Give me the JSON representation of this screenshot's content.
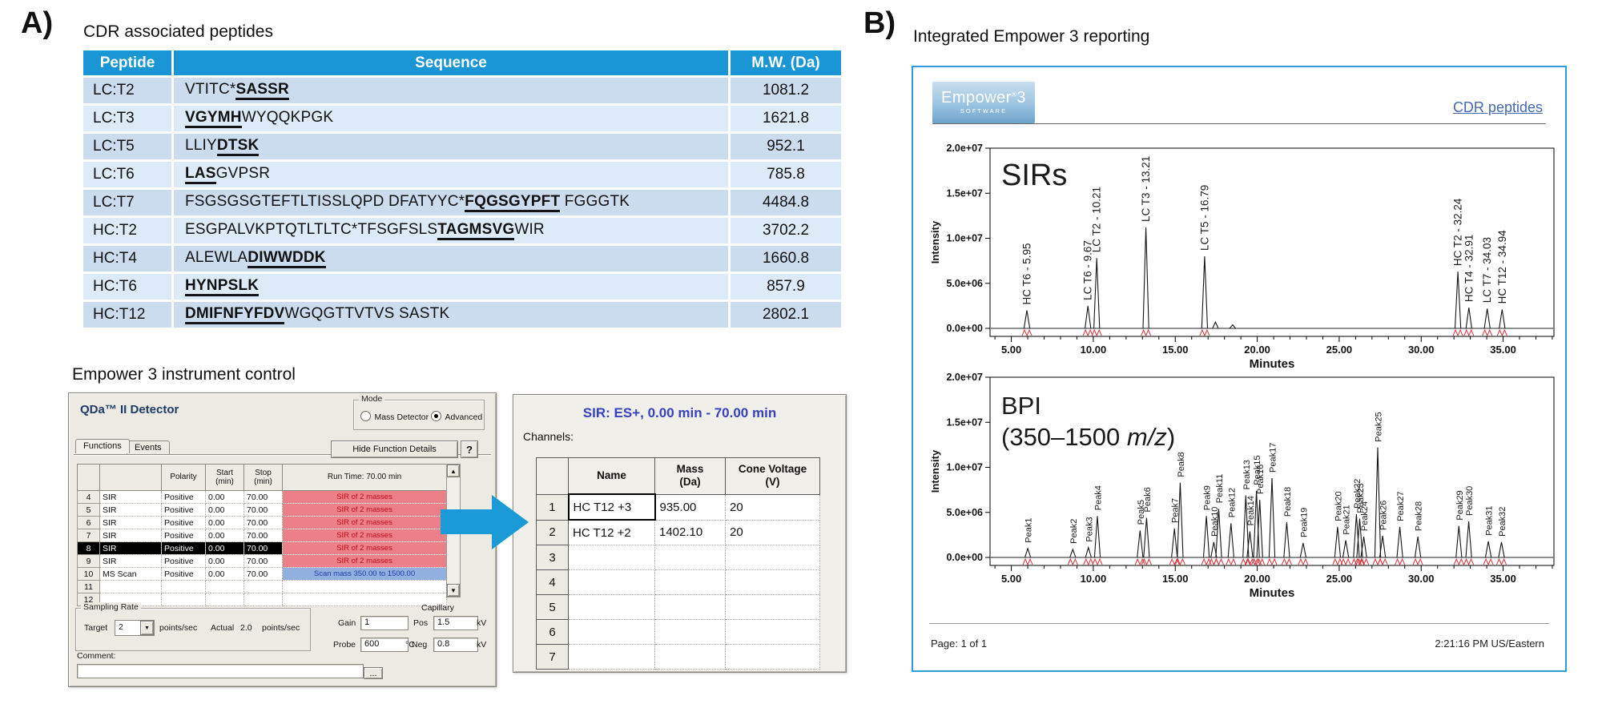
{
  "colors": {
    "table_header_blue": "#1a96d5",
    "row_blue_dark": "#cadcee",
    "row_blue_light": "#dcebf7",
    "sir_status_red": "#ec7f88",
    "scan_status_blue": "#92b0df",
    "arrow_blue": "#1a9bd8",
    "report_border_blue": "#2d9ddb",
    "link_blue": "#4568b0",
    "marker_red": "#d83540"
  },
  "panel_a": {
    "label": "A)",
    "table_title": "CDR associated peptides",
    "peptide_table": {
      "headers": [
        "Peptide",
        "Sequence",
        "M.W. (Da)"
      ],
      "rows": [
        {
          "peptide": "LC:T2",
          "sequence": [
            {
              "t": "VTITC*",
              "u": false
            },
            {
              "t": "SASSR",
              "u": true
            }
          ],
          "mw": "1081.2"
        },
        {
          "peptide": "LC:T3",
          "sequence": [
            {
              "t": "VGYMH",
              "u": true
            },
            {
              "t": "WYQQKPGK",
              "u": false
            }
          ],
          "mw": "1621.8"
        },
        {
          "peptide": "LC:T5",
          "sequence": [
            {
              "t": "LLIY",
              "u": false
            },
            {
              "t": "DTSK",
              "u": true
            }
          ],
          "mw": "952.1"
        },
        {
          "peptide": "LC:T6",
          "sequence": [
            {
              "t": "LAS",
              "u": true
            },
            {
              "t": "GVPSR",
              "u": false
            }
          ],
          "mw": "785.8"
        },
        {
          "peptide": "LC:T7",
          "sequence": [
            {
              "t": "FSGSGSGTEFTLTISSLQPD DFATYYC*",
              "u": false
            },
            {
              "t": "FQGSGYPFT",
              "u": true
            },
            {
              "t": " FGGGTK",
              "u": false
            }
          ],
          "mw": "4484.8"
        },
        {
          "peptide": "HC:T2",
          "sequence": [
            {
              "t": "ESGPALVKPTQTLTLTC*TFSGFSLS",
              "u": false
            },
            {
              "t": "TAGMSVG",
              "u": true
            },
            {
              "t": "WIR",
              "u": false
            }
          ],
          "mw": "3702.2"
        },
        {
          "peptide": "HC:T4",
          "sequence": [
            {
              "t": "ALEWLA",
              "u": false
            },
            {
              "t": "DIWWDDK",
              "u": true
            }
          ],
          "mw": "1660.8"
        },
        {
          "peptide": "HC:T6",
          "sequence": [
            {
              "t": "HYNPSLK",
              "u": true
            }
          ],
          "mw": "857.9"
        },
        {
          "peptide": "HC:T12",
          "sequence": [
            {
              "t": "DMIFNFYFDV",
              "u": true
            },
            {
              "t": "WGQGTTVTVS SASTK",
              "u": false
            }
          ],
          "mw": "2802.1"
        }
      ]
    },
    "control_title": "Empower 3 instrument control",
    "detector_window": {
      "title": "QDa™ II Detector",
      "mode_group": {
        "label": "Mode",
        "options": [
          {
            "label": "Mass Detector",
            "selected": false
          },
          {
            "label": "Advanced",
            "selected": true
          }
        ]
      },
      "tabs": [
        "Functions",
        "Events"
      ],
      "hide_details_button": "Hide Function Details",
      "help_button": "?",
      "function_table": {
        "headers": {
          "polarity": "Polarity",
          "start": "Start\n(min)",
          "stop": "Stop\n(min)",
          "runtime": "Run Time: 70.00 min"
        },
        "rows": [
          {
            "num": "4",
            "name": "SIR",
            "polarity": "Positive",
            "start": "0.00",
            "stop": "70.00",
            "detail": "SIR of 2 masses",
            "detail_type": "sir",
            "selected": false
          },
          {
            "num": "5",
            "name": "SIR",
            "polarity": "Positive",
            "start": "0.00",
            "stop": "70.00",
            "detail": "SIR of 2 masses",
            "detail_type": "sir",
            "selected": false
          },
          {
            "num": "6",
            "name": "SIR",
            "polarity": "Positive",
            "start": "0.00",
            "stop": "70.00",
            "detail": "SIR of 2 masses",
            "detail_type": "sir",
            "selected": false
          },
          {
            "num": "7",
            "name": "SIR",
            "polarity": "Positive",
            "start": "0.00",
            "stop": "70.00",
            "detail": "SIR of 2 masses",
            "detail_type": "sir",
            "selected": false
          },
          {
            "num": "8",
            "name": "SIR",
            "polarity": "Positive",
            "start": "0.00",
            "stop": "70.00",
            "detail": "SIR of 2 masses",
            "detail_type": "sir",
            "selected": true
          },
          {
            "num": "9",
            "name": "SIR",
            "polarity": "Positive",
            "start": "0.00",
            "stop": "70.00",
            "detail": "SIR of 2 masses",
            "detail_type": "sir",
            "selected": false
          },
          {
            "num": "10",
            "name": "MS Scan",
            "polarity": "Positive",
            "start": "0.00",
            "stop": "70.00",
            "detail": "Scan mass 350.00 to 1500.00",
            "detail_type": "scan",
            "selected": false
          },
          {
            "num": "11",
            "name": "",
            "polarity": "",
            "start": "",
            "stop": "",
            "detail": "",
            "detail_type": "none",
            "selected": false
          },
          {
            "num": "12",
            "name": "",
            "polarity": "",
            "start": "",
            "stop": "",
            "detail": "",
            "detail_type": "none",
            "selected": false
          }
        ]
      },
      "sampling_rate": {
        "label": "Sampling Rate",
        "target_label": "Target",
        "target_value": "2",
        "unit1": "points/sec",
        "actual_label": "Actual",
        "actual_value": "2.0",
        "unit2": "points/sec"
      },
      "gain_label": "Gain",
      "gain_value": "1",
      "capillary_label": "Capillary",
      "pos_label": "Pos",
      "pos_value": "1.5",
      "pos_unit": "kV",
      "probe_label": "Probe",
      "probe_value": "600",
      "probe_unit": "°C",
      "neg_label": "Neg",
      "neg_value": "0.8",
      "neg_unit": "kV",
      "comment_label": "Comment:",
      "comment_value": "",
      "browse_button": "..."
    },
    "sir_window": {
      "title": "SIR: ES+, 0.00 min - 70.00 min",
      "channels_label": "Channels:",
      "table": {
        "headers": [
          "Name",
          "Mass\n(Da)",
          "Cone Voltage\n(V)"
        ],
        "rows": [
          {
            "num": "1",
            "name": "HC T12 +3",
            "mass": "935.00",
            "cone": "20"
          },
          {
            "num": "2",
            "name": "HC T12 +2",
            "mass": "1402.10",
            "cone": "20"
          },
          {
            "num": "3",
            "name": "",
            "mass": "",
            "cone": ""
          },
          {
            "num": "4",
            "name": "",
            "mass": "",
            "cone": ""
          },
          {
            "num": "5",
            "name": "",
            "mass": "",
            "cone": ""
          },
          {
            "num": "6",
            "name": "",
            "mass": "",
            "cone": ""
          },
          {
            "num": "7",
            "name": "",
            "mass": "",
            "cone": ""
          }
        ]
      }
    }
  },
  "panel_b": {
    "label": "B)",
    "title": "Integrated Empower 3 reporting",
    "logo": {
      "name": "Empower",
      "reg": "®",
      "version": "3",
      "sub": "SOFTWARE"
    },
    "report_link": "CDR peptides",
    "footer": {
      "page": "Page: 1 of 1",
      "timestamp": "2:21:16 PM US/Eastern"
    }
  },
  "chart_data": [
    {
      "type": "line",
      "subtype": "chromatogram",
      "title": "SIRs",
      "xlabel": "Minutes",
      "ylabel": "Intensity",
      "xlim": [
        3.7,
        38.1
      ],
      "ylim": [
        0,
        20000000
      ],
      "xticks": [
        5,
        10,
        15,
        20,
        25,
        30,
        35
      ],
      "xtick_labels": [
        "5.00",
        "10.00",
        "15.00",
        "20.00",
        "25.00",
        "30.00",
        "35.00"
      ],
      "yticks": [
        0,
        5000000,
        10000000,
        15000000,
        20000000
      ],
      "ytick_labels": [
        "0.0e+00",
        "5.0e+06",
        "1.0e+07",
        "1.5e+07",
        "2.0e+07"
      ],
      "grid": false,
      "peaks": [
        {
          "label": "HC T6 - 5.95",
          "rt": 5.95,
          "intensity": 2000000
        },
        {
          "label": "LC T6 - 9.67",
          "rt": 9.67,
          "intensity": 2500000
        },
        {
          "label": "LC T2 - 10.21",
          "rt": 10.21,
          "intensity": 7800000
        },
        {
          "label": "LC T3 - 13.21",
          "rt": 13.21,
          "intensity": 11200000
        },
        {
          "label": "LC T5 - 16.79",
          "rt": 16.79,
          "intensity": 8000000
        },
        {
          "label": "",
          "rt": 17.45,
          "intensity": 700000
        },
        {
          "label": "",
          "rt": 18.5,
          "intensity": 400000
        },
        {
          "label": "HC T2 - 32.24",
          "rt": 32.24,
          "intensity": 6300000
        },
        {
          "label": "HC T4 - 32.91",
          "rt": 32.91,
          "intensity": 2300000
        },
        {
          "label": "LC T7 - 34.03",
          "rt": 34.03,
          "intensity": 2200000
        },
        {
          "label": "HC T12 - 34.94",
          "rt": 34.94,
          "intensity": 2100000
        }
      ]
    },
    {
      "type": "line",
      "subtype": "chromatogram",
      "title": "BPI",
      "subtitle_parts": [
        {
          "t": "(350–1500 ",
          "i": false
        },
        {
          "t": "m/z",
          "i": true
        },
        {
          "t": ")",
          "i": false
        }
      ],
      "xlabel": "Minutes",
      "ylabel": "Intensity",
      "xlim": [
        3.7,
        38.1
      ],
      "ylim": [
        0,
        20000000
      ],
      "xticks": [
        5,
        10,
        15,
        20,
        25,
        30,
        35
      ],
      "xtick_labels": [
        "5.00",
        "10.00",
        "15.00",
        "20.00",
        "25.00",
        "30.00",
        "35.00"
      ],
      "yticks": [
        0,
        5000000,
        10000000,
        15000000,
        20000000
      ],
      "ytick_labels": [
        "0.0e+00",
        "5.0e+06",
        "1.0e+07",
        "1.5e+07",
        "2.0e+07"
      ],
      "grid": false,
      "peaks": [
        {
          "label": "Peak1",
          "rt": 6.0,
          "intensity": 1000000
        },
        {
          "label": "Peak2",
          "rt": 8.75,
          "intensity": 900000
        },
        {
          "label": "Peak3",
          "rt": 9.7,
          "intensity": 1100000
        },
        {
          "label": "Peak4",
          "rt": 10.25,
          "intensity": 4600000
        },
        {
          "label": "Peak5",
          "rt": 12.85,
          "intensity": 3000000
        },
        {
          "label": "Peak6",
          "rt": 13.25,
          "intensity": 4400000
        },
        {
          "label": "Peak7",
          "rt": 14.95,
          "intensity": 3200000
        },
        {
          "label": "Peak8",
          "rt": 15.3,
          "intensity": 8300000
        },
        {
          "label": "Peak9",
          "rt": 16.9,
          "intensity": 4600000
        },
        {
          "label": "Peak10",
          "rt": 17.35,
          "intensity": 1700000
        },
        {
          "label": "Peak11",
          "rt": 17.65,
          "intensity": 5400000
        },
        {
          "label": "Peak12",
          "rt": 18.4,
          "intensity": 3800000
        },
        {
          "label": "Peak13",
          "rt": 19.3,
          "intensity": 6900000
        },
        {
          "label": "Peak14",
          "rt": 19.55,
          "intensity": 2900000
        },
        {
          "label": "Peak15",
          "rt": 19.95,
          "intensity": 7400000
        },
        {
          "label": "Peak16",
          "rt": 20.15,
          "intensity": 6400000
        },
        {
          "label": "Peak17",
          "rt": 20.9,
          "intensity": 8800000
        },
        {
          "label": "Peak18",
          "rt": 21.8,
          "intensity": 3900000
        },
        {
          "label": "Peak19",
          "rt": 22.8,
          "intensity": 1600000
        },
        {
          "label": "Peak20",
          "rt": 24.9,
          "intensity": 3400000
        },
        {
          "label": "Peak21",
          "rt": 25.4,
          "intensity": 1900000
        },
        {
          "label": "Peak22",
          "rt": 26.05,
          "intensity": 4800000
        },
        {
          "label": "Peak23",
          "rt": 26.25,
          "intensity": 4300000
        },
        {
          "label": "Peak24",
          "rt": 26.5,
          "intensity": 2300000
        },
        {
          "label": "Peak25",
          "rt": 27.35,
          "intensity": 12200000
        },
        {
          "label": "Peak26",
          "rt": 27.65,
          "intensity": 2400000
        },
        {
          "label": "Peak27",
          "rt": 28.7,
          "intensity": 3400000
        },
        {
          "label": "Peak28",
          "rt": 29.8,
          "intensity": 2300000
        },
        {
          "label": "Peak29",
          "rt": 32.3,
          "intensity": 3500000
        },
        {
          "label": "Peak30",
          "rt": 32.9,
          "intensity": 4000000
        },
        {
          "label": "Peak31",
          "rt": 34.1,
          "intensity": 1800000
        },
        {
          "label": "Peak32",
          "rt": 34.9,
          "intensity": 1700000
        }
      ]
    }
  ]
}
